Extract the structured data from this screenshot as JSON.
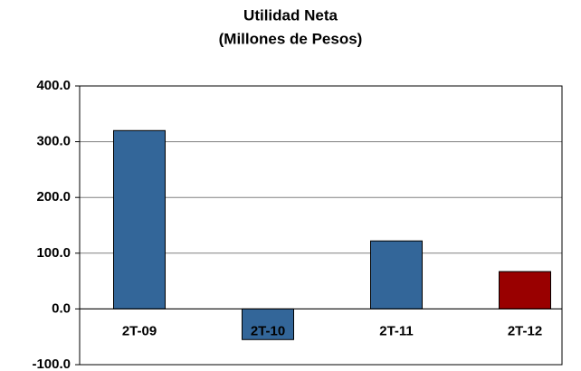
{
  "chart_data": {
    "type": "bar",
    "title": "Utilidad Neta",
    "subtitle": "(Millones de Pesos)",
    "categories": [
      "2T-09",
      "2T-10",
      "2T-11",
      "2T-12"
    ],
    "values": [
      320,
      -55,
      122,
      67
    ],
    "colors": [
      "#336699",
      "#336699",
      "#336699",
      "#990000"
    ],
    "ylim": [
      -100,
      400
    ],
    "yticks": [
      {
        "value": -100,
        "label": "-100.0"
      },
      {
        "value": 0,
        "label": "0.0"
      },
      {
        "value": 100,
        "label": "100.0"
      },
      {
        "value": 200,
        "label": "200.0"
      },
      {
        "value": 300,
        "label": "300.0"
      },
      {
        "value": 400,
        "label": "400.0"
      }
    ],
    "grid": true
  }
}
